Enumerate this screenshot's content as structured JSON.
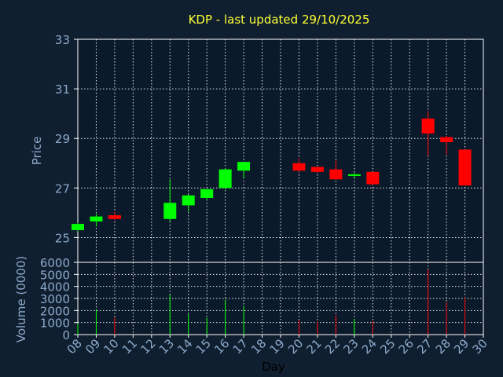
{
  "chart_data": {
    "type": "candlestick",
    "title": "KDP - last updated 29/10/2025",
    "xlabel": "Day",
    "price_ylabel": "Price",
    "volume_ylabel": "Volume (0000)",
    "x_ticks": [
      "08",
      "09",
      "10",
      "11",
      "12",
      "13",
      "14",
      "15",
      "16",
      "17",
      "18",
      "19",
      "20",
      "21",
      "22",
      "23",
      "24",
      "25",
      "26",
      "27",
      "28",
      "29",
      "30"
    ],
    "price_yticks": [
      "25",
      "27",
      "29",
      "31",
      "33"
    ],
    "volume_yticks": [
      "0",
      "1000",
      "2000",
      "3000",
      "4000",
      "5000",
      "6000"
    ],
    "price_ylim": [
      24,
      33
    ],
    "volume_ylim": [
      0,
      6000
    ],
    "grid": true,
    "colors": {
      "up": "#00ff00",
      "down": "#ff0000",
      "background": "#0f1f30",
      "plot": "#0b1a2b",
      "title": "#ffff33",
      "axis_text": "#8ca9c9"
    },
    "candles": [
      {
        "day": 8,
        "open": 25.3,
        "close": 25.55,
        "high": 25.6,
        "low": 25.25,
        "volume": 900
      },
      {
        "day": 9,
        "open": 25.65,
        "close": 25.85,
        "high": 25.95,
        "low": 25.45,
        "volume": 2100
      },
      {
        "day": 10,
        "open": 25.9,
        "close": 25.75,
        "high": 26.05,
        "low": 25.7,
        "volume": 1400
      },
      {
        "day": 13,
        "open": 25.75,
        "close": 26.4,
        "high": 27.35,
        "low": 25.65,
        "volume": 3300
      },
      {
        "day": 14,
        "open": 26.3,
        "close": 26.7,
        "high": 26.75,
        "low": 26.05,
        "volume": 1700
      },
      {
        "day": 15,
        "open": 26.6,
        "close": 26.95,
        "high": 26.95,
        "low": 26.5,
        "volume": 1400
      },
      {
        "day": 16,
        "open": 27.0,
        "close": 27.75,
        "high": 27.8,
        "low": 26.95,
        "volume": 2900
      },
      {
        "day": 17,
        "open": 27.7,
        "close": 28.05,
        "high": 28.05,
        "low": 27.4,
        "volume": 2400
      },
      {
        "day": 20,
        "open": 28.0,
        "close": 27.7,
        "high": 28.2,
        "low": 27.65,
        "volume": 1200
      },
      {
        "day": 21,
        "open": 27.85,
        "close": 27.65,
        "high": 27.85,
        "low": 27.6,
        "volume": 1100
      },
      {
        "day": 22,
        "open": 27.75,
        "close": 27.35,
        "high": 28.1,
        "low": 27.35,
        "volume": 1600
      },
      {
        "day": 23,
        "open": 27.5,
        "close": 27.55,
        "high": 27.6,
        "low": 27.4,
        "volume": 1300
      },
      {
        "day": 24,
        "open": 27.65,
        "close": 27.15,
        "high": 27.65,
        "low": 27.1,
        "volume": 1100
      },
      {
        "day": 27,
        "open": 29.8,
        "close": 29.2,
        "high": 30.1,
        "low": 28.3,
        "volume": 5400
      },
      {
        "day": 28,
        "open": 29.05,
        "close": 28.85,
        "high": 29.1,
        "low": 28.35,
        "volume": 2700
      },
      {
        "day": 29,
        "open": 28.55,
        "close": 27.1,
        "high": 28.55,
        "low": 27.1,
        "volume": 3100
      }
    ]
  }
}
